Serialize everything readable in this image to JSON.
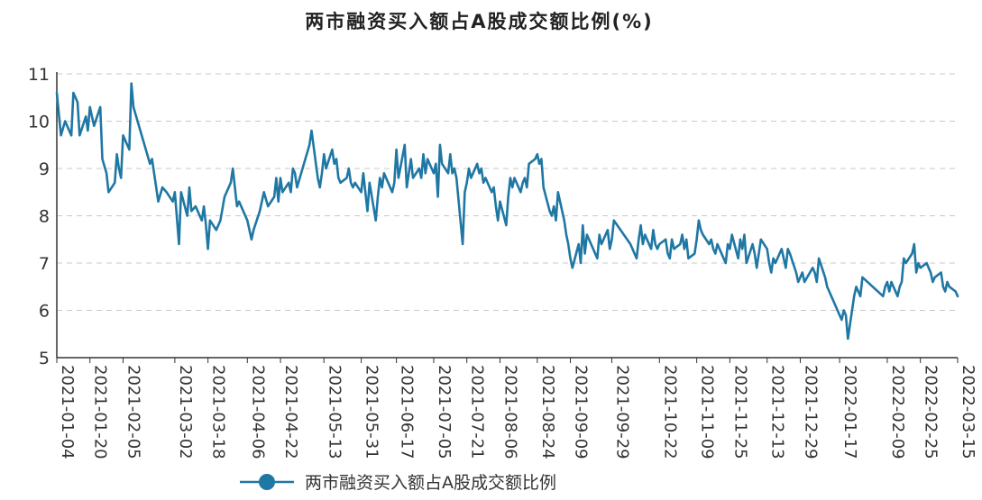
{
  "chart_data": {
    "type": "line",
    "title": "两市融资买入额占A股成交额比例(%)",
    "xlabel": "",
    "ylabel": "",
    "ylim": [
      5,
      11
    ],
    "yticks": [
      5,
      6,
      7,
      8,
      9,
      10,
      11
    ],
    "grid": true,
    "legend_placement": "bottom",
    "line_color": "#1f77a4",
    "x_tick_labels": [
      "2021-01-04",
      "2021-01-20",
      "2021-02-05",
      "2021-03-02",
      "2021-03-18",
      "2021-04-06",
      "2021-04-22",
      "2021-05-13",
      "2021-05-31",
      "2021-06-17",
      "2021-07-05",
      "2021-07-21",
      "2021-08-06",
      "2021-08-24",
      "2021-09-09",
      "2021-09-29",
      "2021-10-22",
      "2021-11-09",
      "2021-11-25",
      "2021-12-13",
      "2021-12-29",
      "2022-01-17",
      "2022-02-09",
      "2022-02-25",
      "2022-03-15"
    ],
    "series": [
      {
        "name": "两市融资买入额占A股成交额比例",
        "points": [
          [
            "2021-01-04",
            10.6
          ],
          [
            "2021-01-06",
            9.7
          ],
          [
            "2021-01-08",
            10.0
          ],
          [
            "2021-01-11",
            9.7
          ],
          [
            "2021-01-12",
            10.6
          ],
          [
            "2021-01-14",
            10.4
          ],
          [
            "2021-01-15",
            9.7
          ],
          [
            "2021-01-18",
            10.1
          ],
          [
            "2021-01-19",
            9.8
          ],
          [
            "2021-01-20",
            10.3
          ],
          [
            "2021-01-22",
            9.9
          ],
          [
            "2021-01-25",
            10.3
          ],
          [
            "2021-01-26",
            9.2
          ],
          [
            "2021-01-28",
            8.9
          ],
          [
            "2021-01-29",
            8.5
          ],
          [
            "2021-02-01",
            8.7
          ],
          [
            "2021-02-02",
            9.3
          ],
          [
            "2021-02-03",
            9.0
          ],
          [
            "2021-02-04",
            8.8
          ],
          [
            "2021-02-05",
            9.7
          ],
          [
            "2021-02-08",
            9.4
          ],
          [
            "2021-02-09",
            10.8
          ],
          [
            "2021-02-10",
            10.3
          ],
          [
            "2021-02-18",
            9.1
          ],
          [
            "2021-02-19",
            9.2
          ],
          [
            "2021-02-22",
            8.3
          ],
          [
            "2021-02-24",
            8.6
          ],
          [
            "2021-02-26",
            8.5
          ],
          [
            "2021-03-01",
            8.3
          ],
          [
            "2021-03-02",
            8.5
          ],
          [
            "2021-03-04",
            7.4
          ],
          [
            "2021-03-05",
            8.5
          ],
          [
            "2021-03-08",
            8.0
          ],
          [
            "2021-03-09",
            8.6
          ],
          [
            "2021-03-10",
            8.1
          ],
          [
            "2021-03-12",
            8.2
          ],
          [
            "2021-03-15",
            7.9
          ],
          [
            "2021-03-16",
            8.2
          ],
          [
            "2021-03-17",
            7.8
          ],
          [
            "2021-03-18",
            7.3
          ],
          [
            "2021-03-19",
            7.9
          ],
          [
            "2021-03-22",
            7.7
          ],
          [
            "2021-03-24",
            7.9
          ],
          [
            "2021-03-26",
            8.4
          ],
          [
            "2021-03-29",
            8.7
          ],
          [
            "2021-03-30",
            9.0
          ],
          [
            "2021-04-01",
            8.2
          ],
          [
            "2021-04-02",
            8.3
          ],
          [
            "2021-04-06",
            7.9
          ],
          [
            "2021-04-08",
            7.5
          ],
          [
            "2021-04-09",
            7.7
          ],
          [
            "2021-04-12",
            8.1
          ],
          [
            "2021-04-13",
            8.3
          ],
          [
            "2021-04-14",
            8.5
          ],
          [
            "2021-04-16",
            8.2
          ],
          [
            "2021-04-19",
            8.4
          ],
          [
            "2021-04-20",
            8.8
          ],
          [
            "2021-04-21",
            8.3
          ],
          [
            "2021-04-22",
            8.8
          ],
          [
            "2021-04-23",
            8.5
          ],
          [
            "2021-04-26",
            8.7
          ],
          [
            "2021-04-27",
            8.5
          ],
          [
            "2021-04-28",
            9.0
          ],
          [
            "2021-04-29",
            8.9
          ],
          [
            "2021-04-30",
            8.6
          ],
          [
            "2021-05-06",
            9.5
          ],
          [
            "2021-05-07",
            9.8
          ],
          [
            "2021-05-10",
            8.8
          ],
          [
            "2021-05-11",
            8.6
          ],
          [
            "2021-05-12",
            8.9
          ],
          [
            "2021-05-13",
            9.3
          ],
          [
            "2021-05-14",
            9.0
          ],
          [
            "2021-05-17",
            9.4
          ],
          [
            "2021-05-18",
            9.1
          ],
          [
            "2021-05-19",
            9.2
          ],
          [
            "2021-05-20",
            8.8
          ],
          [
            "2021-05-21",
            8.7
          ],
          [
            "2021-05-24",
            8.8
          ],
          [
            "2021-05-25",
            9.0
          ],
          [
            "2021-05-26",
            8.7
          ],
          [
            "2021-05-27",
            8.6
          ],
          [
            "2021-05-28",
            8.7
          ],
          [
            "2021-05-31",
            8.5
          ],
          [
            "2021-06-01",
            8.9
          ],
          [
            "2021-06-02",
            8.5
          ],
          [
            "2021-06-03",
            8.1
          ],
          [
            "2021-06-04",
            8.7
          ],
          [
            "2021-06-07",
            7.9
          ],
          [
            "2021-06-08",
            8.4
          ],
          [
            "2021-06-09",
            8.8
          ],
          [
            "2021-06-10",
            8.6
          ],
          [
            "2021-06-11",
            8.9
          ],
          [
            "2021-06-15",
            8.5
          ],
          [
            "2021-06-16",
            8.7
          ],
          [
            "2021-06-17",
            9.4
          ],
          [
            "2021-06-18",
            8.8
          ],
          [
            "2021-06-21",
            9.5
          ],
          [
            "2021-06-22",
            8.6
          ],
          [
            "2021-06-23",
            8.9
          ],
          [
            "2021-06-24",
            9.2
          ],
          [
            "2021-06-25",
            8.8
          ],
          [
            "2021-06-28",
            9.0
          ],
          [
            "2021-06-29",
            8.8
          ],
          [
            "2021-06-30",
            9.3
          ],
          [
            "2021-07-01",
            8.9
          ],
          [
            "2021-07-02",
            9.2
          ],
          [
            "2021-07-05",
            8.9
          ],
          [
            "2021-07-06",
            9.1
          ],
          [
            "2021-07-07",
            8.4
          ],
          [
            "2021-07-08",
            9.5
          ],
          [
            "2021-07-09",
            9.1
          ],
          [
            "2021-07-12",
            8.9
          ],
          [
            "2021-07-13",
            9.3
          ],
          [
            "2021-07-14",
            8.9
          ],
          [
            "2021-07-15",
            9.0
          ],
          [
            "2021-07-16",
            8.8
          ],
          [
            "2021-07-19",
            7.4
          ],
          [
            "2021-07-20",
            8.5
          ],
          [
            "2021-07-21",
            8.7
          ],
          [
            "2021-07-22",
            9.0
          ],
          [
            "2021-07-23",
            8.8
          ],
          [
            "2021-07-26",
            9.1
          ],
          [
            "2021-07-27",
            8.9
          ],
          [
            "2021-07-28",
            9.0
          ],
          [
            "2021-07-29",
            8.7
          ],
          [
            "2021-07-30",
            8.8
          ],
          [
            "2021-08-02",
            8.5
          ],
          [
            "2021-08-03",
            8.6
          ],
          [
            "2021-08-04",
            8.2
          ],
          [
            "2021-08-05",
            7.9
          ],
          [
            "2021-08-06",
            8.3
          ],
          [
            "2021-08-09",
            7.8
          ],
          [
            "2021-08-10",
            8.4
          ],
          [
            "2021-08-11",
            8.8
          ],
          [
            "2021-08-12",
            8.6
          ],
          [
            "2021-08-13",
            8.8
          ],
          [
            "2021-08-16",
            8.5
          ],
          [
            "2021-08-17",
            8.7
          ],
          [
            "2021-08-18",
            8.8
          ],
          [
            "2021-08-19",
            8.6
          ],
          [
            "2021-08-20",
            9.1
          ],
          [
            "2021-08-23",
            9.2
          ],
          [
            "2021-08-24",
            9.3
          ],
          [
            "2021-08-25",
            9.1
          ],
          [
            "2021-08-26",
            9.2
          ],
          [
            "2021-08-27",
            8.6
          ],
          [
            "2021-08-30",
            8.1
          ],
          [
            "2021-08-31",
            8.0
          ],
          [
            "2021-09-01",
            8.2
          ],
          [
            "2021-09-02",
            7.9
          ],
          [
            "2021-09-03",
            8.5
          ],
          [
            "2021-09-06",
            7.9
          ],
          [
            "2021-09-07",
            7.6
          ],
          [
            "2021-09-08",
            7.4
          ],
          [
            "2021-09-09",
            7.1
          ],
          [
            "2021-09-10",
            6.9
          ],
          [
            "2021-09-13",
            7.4
          ],
          [
            "2021-09-14",
            7.0
          ],
          [
            "2021-09-15",
            7.8
          ],
          [
            "2021-09-16",
            7.2
          ],
          [
            "2021-09-17",
            7.6
          ],
          [
            "2021-09-22",
            7.1
          ],
          [
            "2021-09-23",
            7.6
          ],
          [
            "2021-09-24",
            7.4
          ],
          [
            "2021-09-27",
            7.7
          ],
          [
            "2021-09-28",
            7.3
          ],
          [
            "2021-09-29",
            7.5
          ],
          [
            "2021-09-30",
            7.9
          ],
          [
            "2021-10-08",
            7.4
          ],
          [
            "2021-10-11",
            7.1
          ],
          [
            "2021-10-12",
            7.5
          ],
          [
            "2021-10-13",
            7.8
          ],
          [
            "2021-10-14",
            7.4
          ],
          [
            "2021-10-15",
            7.6
          ],
          [
            "2021-10-18",
            7.3
          ],
          [
            "2021-10-19",
            7.7
          ],
          [
            "2021-10-20",
            7.4
          ],
          [
            "2021-10-21",
            7.3
          ],
          [
            "2021-10-22",
            7.4
          ],
          [
            "2021-10-25",
            7.5
          ],
          [
            "2021-10-26",
            7.2
          ],
          [
            "2021-10-27",
            7.1
          ],
          [
            "2021-10-28",
            7.5
          ],
          [
            "2021-10-29",
            7.3
          ],
          [
            "2021-11-01",
            7.4
          ],
          [
            "2021-11-02",
            7.6
          ],
          [
            "2021-11-03",
            7.3
          ],
          [
            "2021-11-04",
            7.5
          ],
          [
            "2021-11-05",
            7.1
          ],
          [
            "2021-11-08",
            7.2
          ],
          [
            "2021-11-09",
            7.5
          ],
          [
            "2021-11-10",
            7.9
          ],
          [
            "2021-11-11",
            7.7
          ],
          [
            "2021-11-12",
            7.6
          ],
          [
            "2021-11-15",
            7.4
          ],
          [
            "2021-11-16",
            7.5
          ],
          [
            "2021-11-17",
            7.3
          ],
          [
            "2021-11-18",
            7.2
          ],
          [
            "2021-11-19",
            7.4
          ],
          [
            "2021-11-22",
            7.1
          ],
          [
            "2021-11-23",
            7.0
          ],
          [
            "2021-11-24",
            7.4
          ],
          [
            "2021-11-25",
            7.3
          ],
          [
            "2021-11-26",
            7.6
          ],
          [
            "2021-11-29",
            7.1
          ],
          [
            "2021-11-30",
            7.5
          ],
          [
            "2021-12-01",
            7.3
          ],
          [
            "2021-12-02",
            7.6
          ],
          [
            "2021-12-03",
            7.0
          ],
          [
            "2021-12-06",
            7.4
          ],
          [
            "2021-12-07",
            7.2
          ],
          [
            "2021-12-08",
            6.9
          ],
          [
            "2021-12-09",
            7.2
          ],
          [
            "2021-12-10",
            7.5
          ],
          [
            "2021-12-13",
            7.3
          ],
          [
            "2021-12-14",
            7.0
          ],
          [
            "2021-12-15",
            6.8
          ],
          [
            "2021-12-16",
            7.1
          ],
          [
            "2021-12-17",
            7.0
          ],
          [
            "2021-12-20",
            7.3
          ],
          [
            "2021-12-21",
            7.1
          ],
          [
            "2021-12-22",
            6.9
          ],
          [
            "2021-12-23",
            7.3
          ],
          [
            "2021-12-24",
            7.2
          ],
          [
            "2021-12-27",
            6.8
          ],
          [
            "2021-12-28",
            6.6
          ],
          [
            "2021-12-29",
            6.7
          ],
          [
            "2021-12-30",
            6.8
          ],
          [
            "2021-12-31",
            6.6
          ],
          [
            "2022-01-04",
            6.9
          ],
          [
            "2022-01-05",
            6.8
          ],
          [
            "2022-01-06",
            6.6
          ],
          [
            "2022-01-07",
            7.1
          ],
          [
            "2022-01-10",
            6.7
          ],
          [
            "2022-01-11",
            6.5
          ],
          [
            "2022-01-12",
            6.4
          ],
          [
            "2022-01-13",
            6.3
          ],
          [
            "2022-01-14",
            6.2
          ],
          [
            "2022-01-17",
            5.9
          ],
          [
            "2022-01-18",
            5.8
          ],
          [
            "2022-01-19",
            6.0
          ],
          [
            "2022-01-20",
            5.9
          ],
          [
            "2022-01-21",
            5.4
          ],
          [
            "2022-01-24",
            6.3
          ],
          [
            "2022-01-25",
            6.5
          ],
          [
            "2022-01-26",
            6.4
          ],
          [
            "2022-01-27",
            6.3
          ],
          [
            "2022-01-28",
            6.7
          ],
          [
            "2022-02-07",
            6.3
          ],
          [
            "2022-02-08",
            6.5
          ],
          [
            "2022-02-09",
            6.6
          ],
          [
            "2022-02-10",
            6.4
          ],
          [
            "2022-02-11",
            6.6
          ],
          [
            "2022-02-14",
            6.3
          ],
          [
            "2022-02-15",
            6.5
          ],
          [
            "2022-02-16",
            6.6
          ],
          [
            "2022-02-17",
            7.1
          ],
          [
            "2022-02-18",
            7.0
          ],
          [
            "2022-02-21",
            7.2
          ],
          [
            "2022-02-22",
            7.4
          ],
          [
            "2022-02-23",
            6.8
          ],
          [
            "2022-02-24",
            7.0
          ],
          [
            "2022-02-25",
            6.9
          ],
          [
            "2022-02-28",
            7.0
          ],
          [
            "2022-03-01",
            6.9
          ],
          [
            "2022-03-02",
            6.8
          ],
          [
            "2022-03-03",
            6.6
          ],
          [
            "2022-03-04",
            6.7
          ],
          [
            "2022-03-07",
            6.8
          ],
          [
            "2022-03-08",
            6.5
          ],
          [
            "2022-03-09",
            6.4
          ],
          [
            "2022-03-10",
            6.6
          ],
          [
            "2022-03-11",
            6.5
          ],
          [
            "2022-03-14",
            6.4
          ],
          [
            "2022-03-15",
            6.3
          ]
        ]
      }
    ]
  }
}
